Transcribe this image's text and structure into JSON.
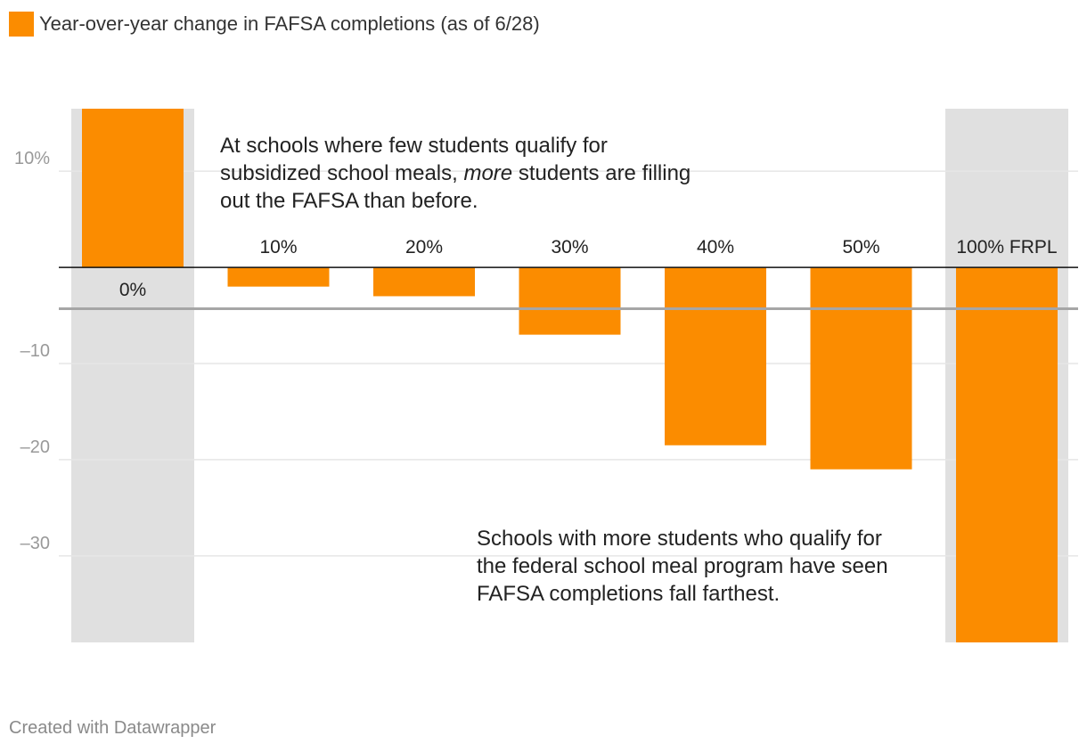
{
  "colors": {
    "bar": "#fb8c00",
    "highlight": "#e0e0e0",
    "grid": "#e6e6e6",
    "reference_line": "#a6a6a6",
    "zero_line": "#111111"
  },
  "chart_data": {
    "type": "bar",
    "title": "",
    "xlabel": "",
    "ylabel": "",
    "legend": [
      {
        "label": "Year-over-year change in FAFSA completions (as of 6/28)",
        "color": "#fb8c00"
      }
    ],
    "categories": [
      "0%",
      "10%",
      "20%",
      "30%",
      "40%",
      "50%",
      "100% FRPL"
    ],
    "values": [
      16.5,
      -2,
      -3,
      -7,
      -18.5,
      -21,
      -39
    ],
    "highlighted_categories": [
      "0%",
      "100% FRPL"
    ],
    "reference_line": -4.3,
    "ylim": [
      -39,
      16.5
    ],
    "yticks": [
      10,
      0,
      -10,
      -20,
      -30
    ],
    "ytick_labels": [
      "10%",
      "",
      "–10",
      "–20",
      "–30"
    ],
    "grid": true,
    "annotations": [
      {
        "id": "top",
        "lines": [
          [
            {
              "text": "At schools where few students qualify for"
            }
          ],
          [
            {
              "text": "subsidized school meals, "
            },
            {
              "text": "more",
              "italic": true
            },
            {
              "text": " students are filling"
            }
          ],
          [
            {
              "text": "out the FAFSA than before."
            }
          ]
        ]
      },
      {
        "id": "bottom",
        "lines": [
          [
            {
              "text": "Schools with more students who qualify for"
            }
          ],
          [
            {
              "text": "the federal school meal program have seen"
            }
          ],
          [
            {
              "text": "FAFSA completions fall farthest."
            }
          ]
        ]
      }
    ]
  },
  "footer": {
    "credit": "Created with Datawrapper"
  }
}
